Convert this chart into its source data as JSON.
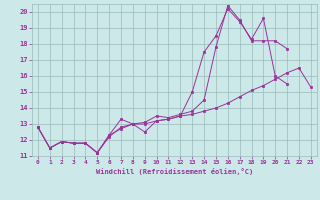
{
  "xlabel": "Windchill (Refroidissement éolien,°C)",
  "bg_color": "#cce8e8",
  "grid_color": "#99bbbb",
  "line_color": "#993399",
  "xlim": [
    -0.5,
    23.5
  ],
  "ylim": [
    11.0,
    20.5
  ],
  "yticks": [
    11,
    12,
    13,
    14,
    15,
    16,
    17,
    18,
    19,
    20
  ],
  "xticks": [
    0,
    1,
    2,
    3,
    4,
    5,
    6,
    7,
    8,
    9,
    10,
    11,
    12,
    13,
    14,
    15,
    16,
    17,
    18,
    19,
    20,
    21,
    22,
    23
  ],
  "line1_x": [
    0,
    1,
    2,
    3,
    4,
    5,
    6,
    7,
    8,
    9,
    10,
    11,
    12,
    13,
    14,
    15,
    16,
    17,
    18,
    19,
    20,
    21,
    22,
    23
  ],
  "line1_y": [
    12.8,
    11.5,
    11.9,
    11.8,
    11.8,
    11.2,
    12.2,
    12.8,
    13.0,
    13.0,
    13.2,
    13.3,
    13.5,
    13.6,
    13.8,
    14.0,
    14.3,
    14.7,
    15.1,
    15.4,
    15.8,
    16.2,
    16.5,
    15.3
  ],
  "line2_x": [
    0,
    1,
    2,
    3,
    4,
    5,
    6,
    7,
    8,
    9,
    10,
    11,
    12,
    13,
    14,
    15,
    16,
    17,
    18,
    19,
    20,
    21
  ],
  "line2_y": [
    12.8,
    11.5,
    11.9,
    11.8,
    11.8,
    11.2,
    12.3,
    12.7,
    13.0,
    12.5,
    13.2,
    13.3,
    13.5,
    15.0,
    17.5,
    18.5,
    20.2,
    19.4,
    18.3,
    19.6,
    16.0,
    15.5
  ],
  "line3_x": [
    0,
    1,
    2,
    3,
    4,
    5,
    6,
    7,
    8,
    9,
    10,
    11,
    12,
    13,
    14,
    15,
    16,
    17,
    18,
    19,
    20,
    21,
    22,
    23
  ],
  "line3_y": [
    12.8,
    11.5,
    11.9,
    11.8,
    11.8,
    11.2,
    12.3,
    13.3,
    13.0,
    13.1,
    13.5,
    13.4,
    13.6,
    13.8,
    14.5,
    17.8,
    20.4,
    19.5,
    18.2,
    18.2,
    18.2,
    17.7,
    null,
    null
  ]
}
